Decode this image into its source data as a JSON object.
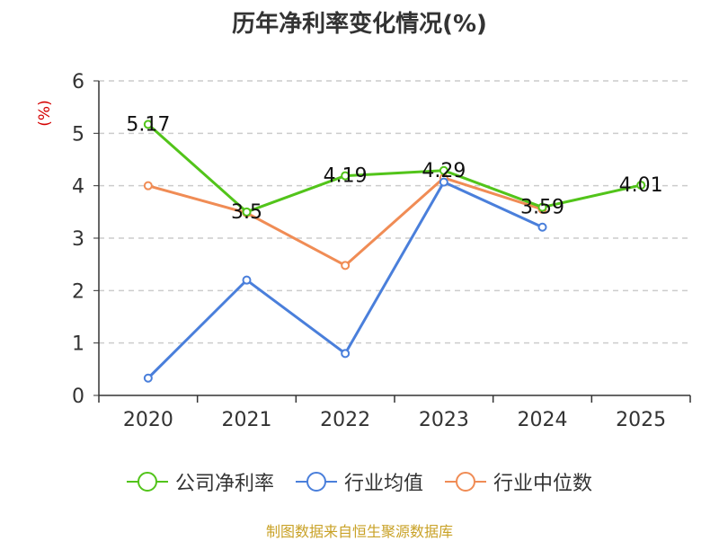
{
  "chart_data": {
    "type": "line",
    "title": "历年净利率变化情况(%)",
    "ylabel": "(%)",
    "categories": [
      "2020",
      "2021",
      "2022",
      "2023",
      "2024",
      "2025"
    ],
    "ylim": [
      0,
      6
    ],
    "yticks": [
      0,
      1,
      2,
      3,
      4,
      5,
      6
    ],
    "grid": true,
    "legend_position": "bottom",
    "series": [
      {
        "name": "公司净利率",
        "color": "#52c41a",
        "values": [
          5.17,
          3.5,
          4.19,
          4.29,
          3.59,
          4.01
        ],
        "labels": [
          "5.17",
          "3.5",
          "4.19",
          "4.29",
          "3.59",
          "4.01"
        ]
      },
      {
        "name": "行业均值",
        "color": "#4a7fdb",
        "values": [
          0.33,
          2.2,
          0.8,
          4.07,
          3.21,
          null
        ]
      },
      {
        "name": "行业中位数",
        "color": "#f08c55",
        "values": [
          4.0,
          3.48,
          2.48,
          4.15,
          3.55,
          null
        ]
      }
    ]
  },
  "source": "制图数据来自恒生聚源数据库"
}
